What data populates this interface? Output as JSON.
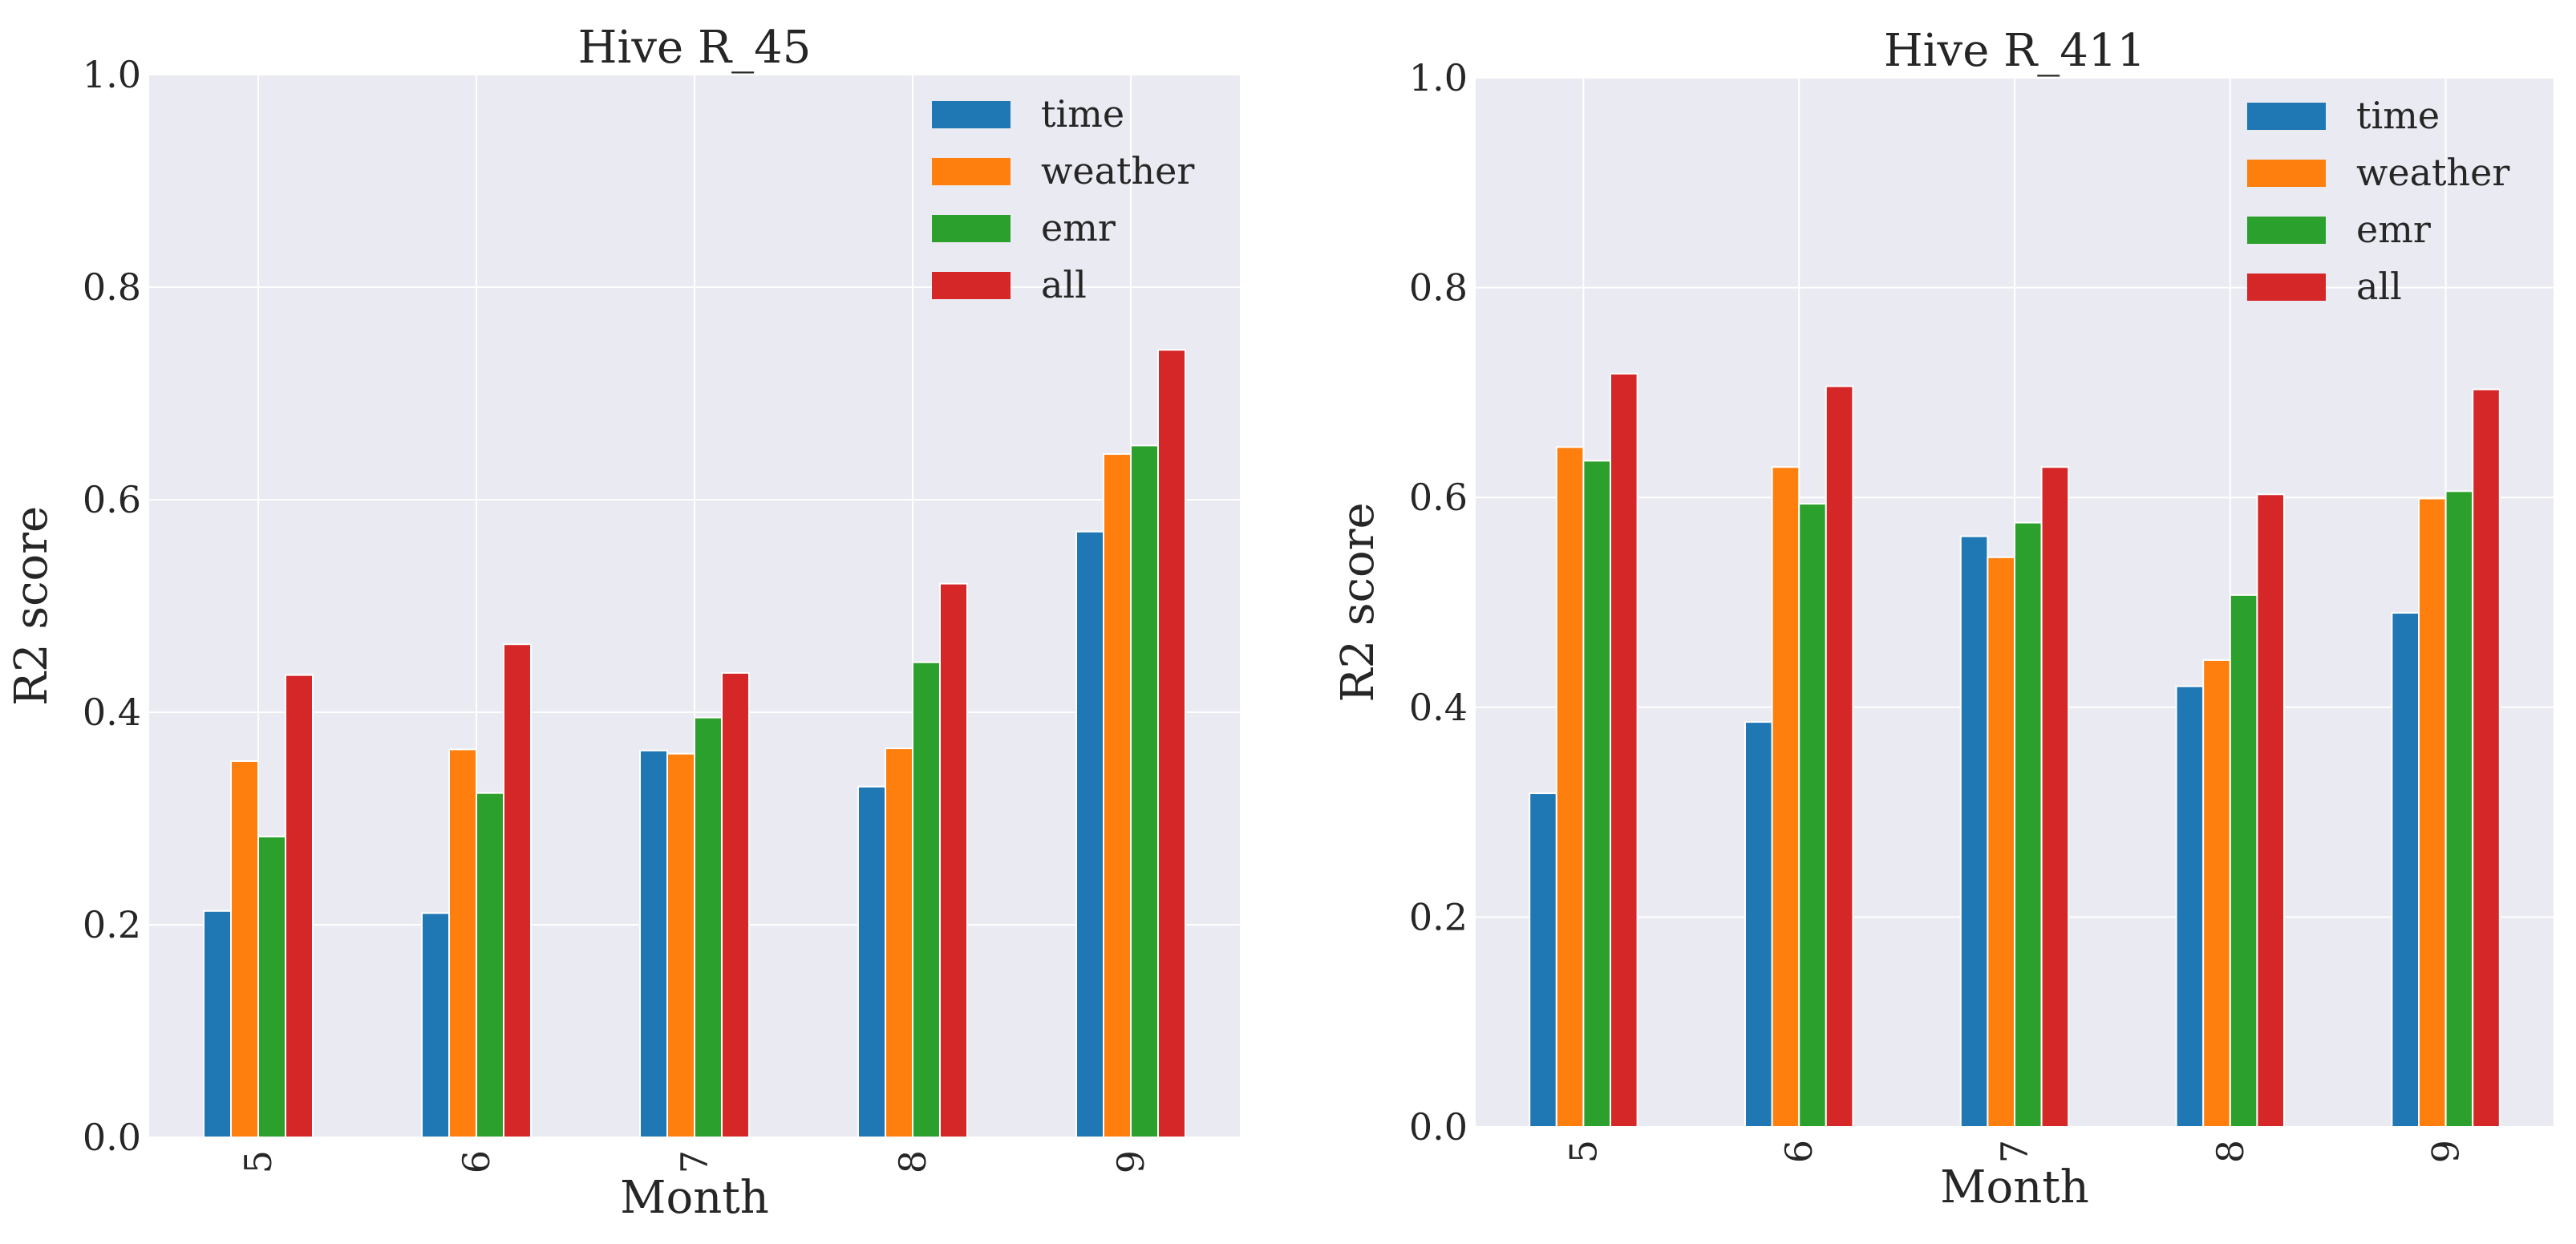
{
  "chart_data": [
    {
      "type": "bar",
      "title": "Hive R_45",
      "xlabel": "Month",
      "ylabel": "R2 score",
      "ylim": [
        0,
        1.0
      ],
      "yticks": [
        "0.0",
        "0.2",
        "0.4",
        "0.6",
        "0.8",
        "1.0"
      ],
      "grid": true,
      "legend_position": "top-right",
      "categories": [
        "5",
        "6",
        "7",
        "8",
        "9"
      ],
      "series": [
        {
          "name": "time",
          "color": "#1f77b4",
          "values": [
            0.213,
            0.211,
            0.364,
            0.33,
            0.57
          ]
        },
        {
          "name": "weather",
          "color": "#ff7f0e",
          "values": [
            0.354,
            0.365,
            0.361,
            0.366,
            0.643
          ]
        },
        {
          "name": "emr",
          "color": "#2ca02c",
          "values": [
            0.283,
            0.324,
            0.395,
            0.447,
            0.651
          ]
        },
        {
          "name": "all",
          "color": "#d62728",
          "values": [
            0.435,
            0.464,
            0.437,
            0.521,
            0.741
          ]
        }
      ]
    },
    {
      "type": "bar",
      "title": "Hive R_411",
      "xlabel": "Month",
      "ylabel": "R2 score",
      "ylim": [
        0,
        1.0
      ],
      "yticks": [
        "0.0",
        "0.2",
        "0.4",
        "0.6",
        "0.8",
        "1.0"
      ],
      "grid": true,
      "legend_position": "top-right",
      "categories": [
        "5",
        "6",
        "7",
        "8",
        "9"
      ],
      "series": [
        {
          "name": "time",
          "color": "#1f77b4",
          "values": [
            0.318,
            0.386,
            0.563,
            0.42,
            0.49
          ]
        },
        {
          "name": "weather",
          "color": "#ff7f0e",
          "values": [
            0.648,
            0.629,
            0.543,
            0.445,
            0.599
          ]
        },
        {
          "name": "emr",
          "color": "#2ca02c",
          "values": [
            0.635,
            0.594,
            0.576,
            0.507,
            0.606
          ]
        },
        {
          "name": "all",
          "color": "#d62728",
          "values": [
            0.718,
            0.706,
            0.629,
            0.603,
            0.703
          ]
        }
      ]
    }
  ]
}
